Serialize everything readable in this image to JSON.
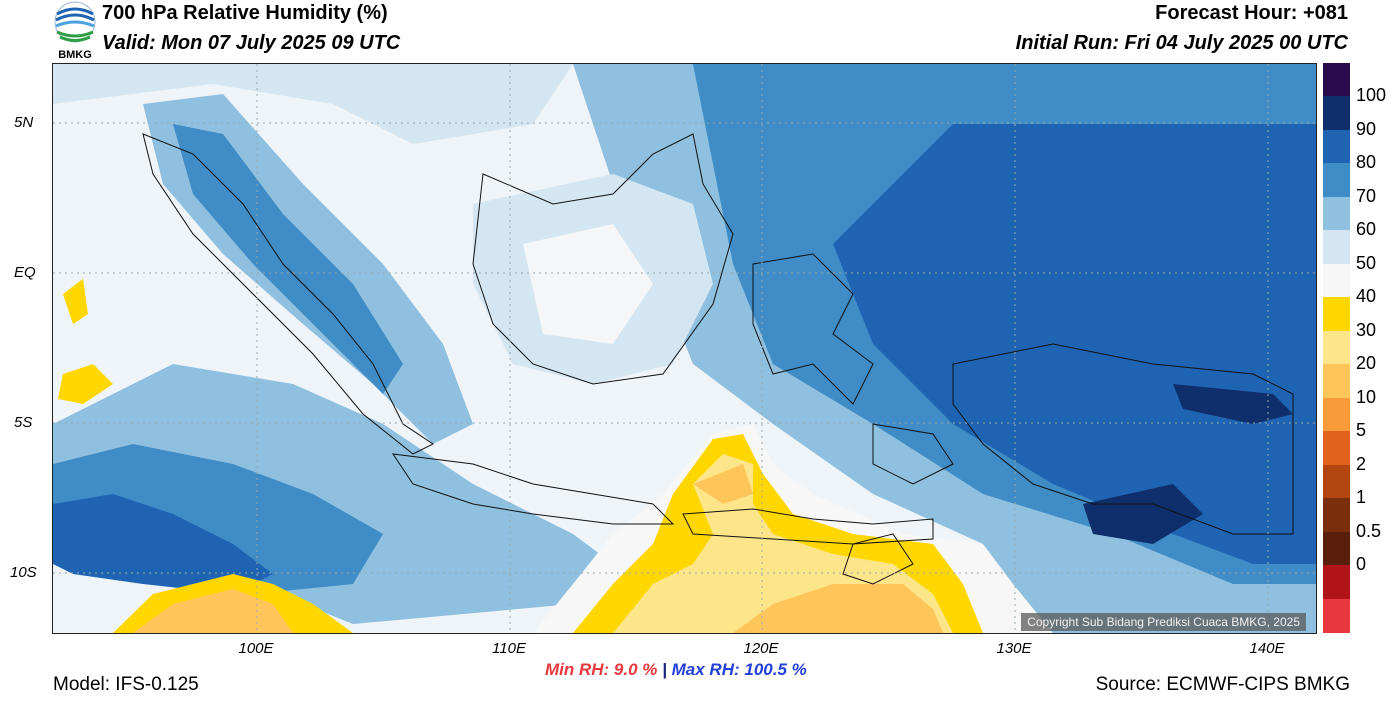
{
  "header": {
    "title": "700 hPa Relative Humidity (%)",
    "valid": "Valid: Mon 07 July 2025 09 UTC",
    "forecast_hour": "Forecast Hour: +081",
    "initial_run": "Initial Run: Fri 04 July 2025 00 UTC"
  },
  "logo": {
    "text": "BMKG",
    "icon": "bmkg-logo-icon"
  },
  "axes": {
    "lat_labels": [
      "5N",
      "EQ",
      "5S",
      "10S"
    ],
    "lon_labels": [
      "100E",
      "110E",
      "120E",
      "130E",
      "140E"
    ]
  },
  "colorbar": {
    "labels": [
      "100",
      "90",
      "80",
      "70",
      "60",
      "50",
      "40",
      "30",
      "20",
      "10",
      "5",
      "2",
      "1",
      "0.5",
      "0"
    ],
    "colors": [
      "#2b0a4d",
      "#0e2f6b",
      "#1f64b3",
      "#3f8cc7",
      "#8fc0e0",
      "#d4e6f2",
      "#f7f7f7",
      "#ffd700",
      "#fde68a",
      "#fdc55a",
      "#f99b3b",
      "#e0621c",
      "#b34510",
      "#7a2e0c",
      "#5a1f0c",
      "#b11418",
      "#e8383d"
    ]
  },
  "stats": {
    "min": "Min RH:   9.0 %",
    "separator": "|",
    "max": "Max RH: 100.5 %"
  },
  "footer": {
    "model": "Model: IFS-0.125",
    "source": "Source: ECMWF-CIPS BMKG",
    "copyright": "Copyright Sub Bidang Prediksi Cuaca BMKG, 2025"
  }
}
